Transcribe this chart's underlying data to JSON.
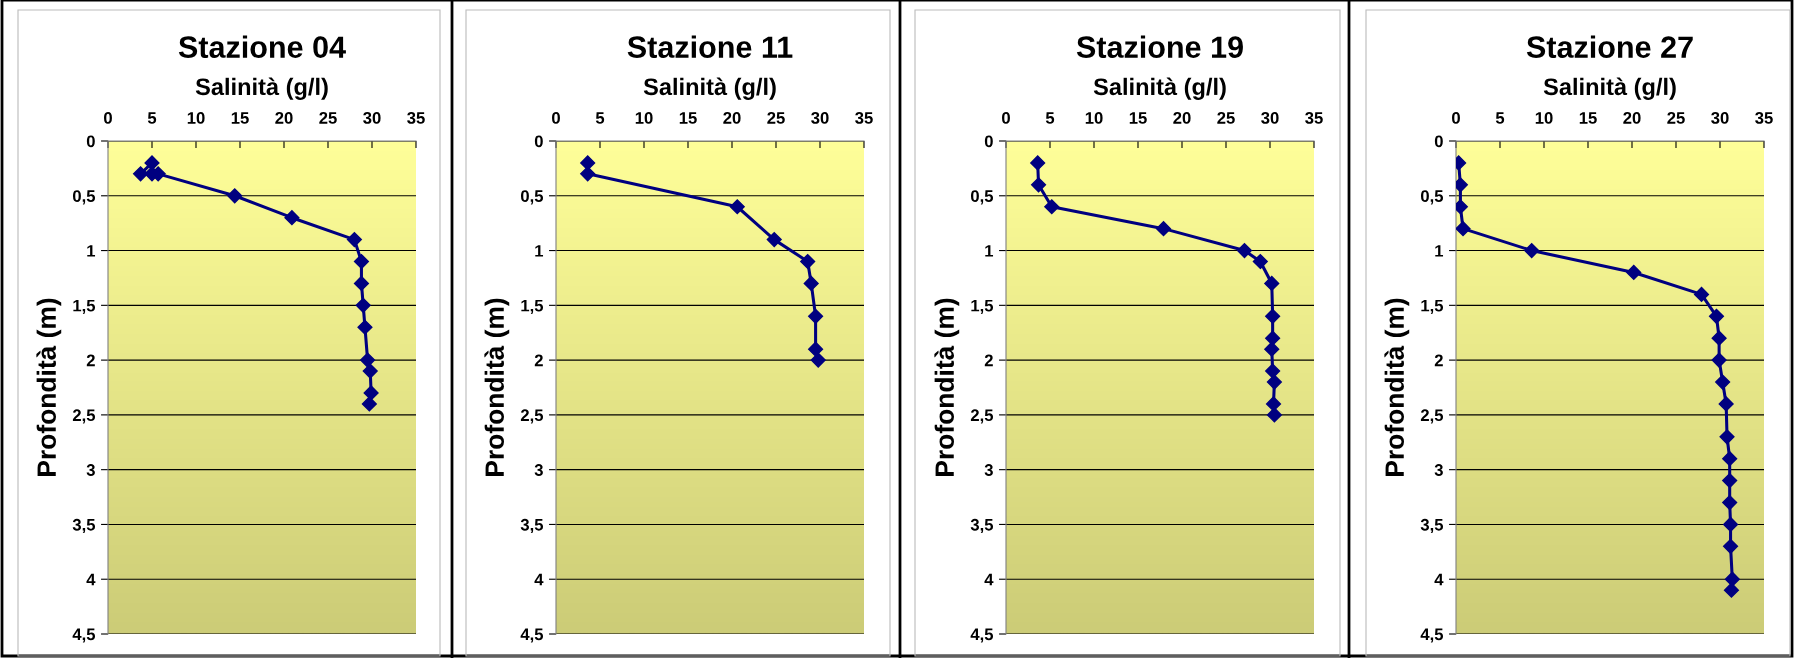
{
  "chart_data": [
    {
      "type": "line",
      "title": "Stazione 04",
      "xlabel": "Salinità (g/l)",
      "ylabel": "Profondità (m)",
      "xlim": [
        0,
        35
      ],
      "xticks": [
        0,
        5,
        10,
        15,
        20,
        25,
        30,
        35
      ],
      "ylim": [
        4.5,
        0
      ],
      "yticks": [
        0,
        {
          "value": 0.5,
          "label": "0,5"
        },
        1,
        {
          "value": 1.5,
          "label": "1,5"
        },
        2,
        {
          "value": 2.5,
          "label": "2,5"
        },
        3,
        {
          "value": 3.5,
          "label": "3,5"
        },
        4,
        {
          "value": 4.5,
          "label": "4,5"
        }
      ],
      "grid": "y",
      "marker": "diamond",
      "line_style": "solid",
      "series": [
        {
          "color": "#000080",
          "x": [
            5.0,
            3.7,
            5.0,
            5.7,
            14.4,
            20.9,
            28.0,
            28.8,
            28.8,
            29.0,
            29.2,
            29.5,
            29.8,
            29.9,
            29.7
          ],
          "values": [
            0.2,
            0.3,
            0.3,
            0.3,
            0.5,
            0.7,
            0.9,
            1.1,
            1.3,
            1.5,
            1.7,
            2.0,
            2.1,
            2.3,
            2.4
          ]
        }
      ]
    },
    {
      "type": "line",
      "title": "Stazione 11",
      "xlabel": "Salinità (g/l)",
      "ylabel": "Profondità (m)",
      "xlim": [
        0,
        35
      ],
      "xticks": [
        0,
        5,
        10,
        15,
        20,
        25,
        30,
        35
      ],
      "ylim": [
        4.5,
        0
      ],
      "yticks": [
        0,
        {
          "value": 0.5,
          "label": "0,5"
        },
        1,
        {
          "value": 1.5,
          "label": "1,5"
        },
        2,
        {
          "value": 2.5,
          "label": "2,5"
        },
        3,
        {
          "value": 3.5,
          "label": "3,5"
        },
        4,
        {
          "value": 4.5,
          "label": "4,5"
        }
      ],
      "grid": "y",
      "marker": "diamond",
      "line_style": "solid",
      "series": [
        {
          "color": "#000080",
          "x": [
            3.6,
            3.6,
            20.6,
            24.8,
            28.6,
            29.0,
            29.5,
            29.5,
            29.8
          ],
          "values": [
            0.2,
            0.3,
            0.6,
            0.9,
            1.1,
            1.3,
            1.6,
            1.9,
            2.0
          ]
        }
      ]
    },
    {
      "type": "line",
      "title": "Stazione 19",
      "xlabel": "Salinità (g/l)",
      "ylabel": "Profondità (m)",
      "xlim": [
        0,
        35
      ],
      "xticks": [
        0,
        5,
        10,
        15,
        20,
        25,
        30,
        35
      ],
      "ylim": [
        4.5,
        0
      ],
      "yticks": [
        0,
        {
          "value": 0.5,
          "label": "0,5"
        },
        1,
        {
          "value": 1.5,
          "label": "1,5"
        },
        2,
        {
          "value": 2.5,
          "label": "2,5"
        },
        3,
        {
          "value": 3.5,
          "label": "3,5"
        },
        4,
        {
          "value": 4.5,
          "label": "4,5"
        }
      ],
      "grid": "y",
      "marker": "diamond",
      "line_style": "solid",
      "series": [
        {
          "color": "#000080",
          "x": [
            3.6,
            3.7,
            5.2,
            17.9,
            27.1,
            28.9,
            30.2,
            30.3,
            30.3,
            30.2,
            30.3,
            30.5,
            30.4,
            30.5
          ],
          "values": [
            0.2,
            0.4,
            0.6,
            0.8,
            1.0,
            1.1,
            1.3,
            1.6,
            1.8,
            1.9,
            2.1,
            2.2,
            2.4,
            2.5
          ]
        }
      ]
    },
    {
      "type": "line",
      "title": "Stazione 27",
      "xlabel": "Salinità (g/l)",
      "ylabel": "Profondità (m)",
      "xlim": [
        0,
        35
      ],
      "xticks": [
        0,
        5,
        10,
        15,
        20,
        25,
        30,
        35
      ],
      "ylim": [
        4.5,
        0
      ],
      "yticks": [
        0,
        {
          "value": 0.5,
          "label": "0,5"
        },
        1,
        {
          "value": 1.5,
          "label": "1,5"
        },
        2,
        {
          "value": 2.5,
          "label": "2,5"
        },
        3,
        {
          "value": 3.5,
          "label": "3,5"
        },
        4,
        {
          "value": 4.5,
          "label": "4,5"
        }
      ],
      "grid": "y",
      "marker": "diamond",
      "line_style": "solid",
      "series": [
        {
          "color": "#000080",
          "x": [
            0.3,
            0.5,
            0.5,
            0.8,
            8.6,
            20.2,
            27.9,
            29.6,
            29.9,
            29.9,
            30.3,
            30.7,
            30.8,
            31.1,
            31.1,
            31.1,
            31.2,
            31.2,
            31.4,
            31.3
          ],
          "values": [
            0.2,
            0.4,
            0.6,
            0.8,
            1.0,
            1.2,
            1.4,
            1.6,
            1.8,
            2.0,
            2.2,
            2.4,
            2.7,
            2.9,
            3.1,
            3.3,
            3.5,
            3.7,
            4.0,
            4.1
          ]
        }
      ]
    }
  ]
}
